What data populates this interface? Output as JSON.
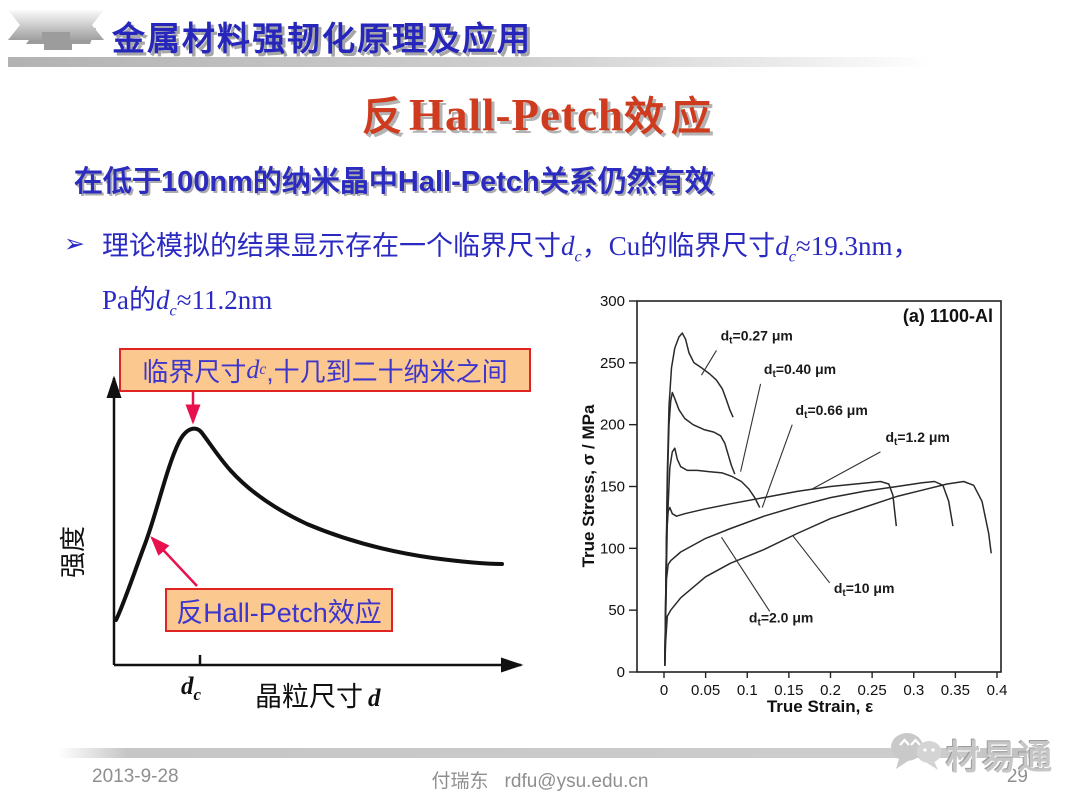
{
  "header": {
    "title": "金属材料强韧化原理及应用"
  },
  "title": {
    "cn_prefix": "反",
    "latin": "Hall-Petch",
    "cn_suffix": "效应"
  },
  "subtitle": "在低于100nm的纳米晶中Hall-Petch关系仍然有效",
  "bullet": {
    "marker": "➢",
    "line1": [
      "理论模拟的结果显示存在一个临界尺寸",
      "d",
      "c",
      "，",
      "Cu",
      "的临界尺寸",
      "d",
      "c",
      "≈19.3nm",
      "，"
    ],
    "line2": [
      "Pa",
      "的",
      "d",
      "c",
      "≈11.2nm"
    ]
  },
  "schematic": {
    "ylabel": "强度",
    "xlabel": [
      "晶粒尺寸",
      "d"
    ],
    "xtick": [
      "d",
      "c"
    ],
    "box1": [
      "临界尺寸",
      "d",
      "c",
      ",十几到二十纳米之间"
    ],
    "box2": "反Hall-Petch效应",
    "colors": {
      "box_bg": "#fbc98f",
      "box_border": "#e02323",
      "arrow": "#e8114d",
      "text": "#3d35cc"
    }
  },
  "chart_data": {
    "type": "line",
    "title": "(a) 1100-Al",
    "title_pos": [
      0.287,
      283
    ],
    "xlabel": "True Strain, ε",
    "ylabel": "True Stress, σ / MPa",
    "xlim": [
      0,
      0.4
    ],
    "ylim": [
      0,
      300
    ],
    "xticks": [
      0,
      0.05,
      0.1,
      0.15,
      0.2,
      0.25,
      0.3,
      0.35,
      0.4
    ],
    "yticks": [
      0,
      50,
      100,
      150,
      200,
      250,
      300
    ],
    "grid": false,
    "series": [
      {
        "name": "dt=0.27um",
        "points": [
          [
            0.001,
            5
          ],
          [
            0.002,
            60
          ],
          [
            0.004,
            160
          ],
          [
            0.006,
            215
          ],
          [
            0.009,
            246
          ],
          [
            0.013,
            262
          ],
          [
            0.018,
            271
          ],
          [
            0.022,
            274
          ],
          [
            0.026,
            269
          ],
          [
            0.03,
            258
          ],
          [
            0.036,
            250
          ],
          [
            0.045,
            246
          ],
          [
            0.055,
            241
          ],
          [
            0.063,
            236
          ],
          [
            0.07,
            229
          ],
          [
            0.075,
            220
          ],
          [
            0.079,
            212
          ],
          [
            0.083,
            206
          ]
        ]
      },
      {
        "name": "dt=0.40um",
        "points": [
          [
            0.001,
            5
          ],
          [
            0.002,
            60
          ],
          [
            0.004,
            150
          ],
          [
            0.006,
            200
          ],
          [
            0.008,
            219
          ],
          [
            0.01,
            226
          ],
          [
            0.013,
            221
          ],
          [
            0.018,
            212
          ],
          [
            0.025,
            205
          ],
          [
            0.035,
            200
          ],
          [
            0.048,
            196
          ],
          [
            0.06,
            194
          ],
          [
            0.068,
            191
          ],
          [
            0.073,
            185
          ],
          [
            0.077,
            176
          ],
          [
            0.081,
            167
          ],
          [
            0.085,
            160
          ]
        ]
      },
      {
        "name": "dt=0.66um",
        "points": [
          [
            0.001,
            5
          ],
          [
            0.002,
            50
          ],
          [
            0.004,
            120
          ],
          [
            0.007,
            165
          ],
          [
            0.01,
            178
          ],
          [
            0.013,
            181
          ],
          [
            0.016,
            172
          ],
          [
            0.02,
            166
          ],
          [
            0.028,
            163
          ],
          [
            0.04,
            163
          ],
          [
            0.055,
            162
          ],
          [
            0.07,
            161
          ],
          [
            0.082,
            158
          ],
          [
            0.093,
            154
          ],
          [
            0.102,
            148
          ],
          [
            0.109,
            141
          ],
          [
            0.115,
            133
          ]
        ]
      },
      {
        "name": "dt=1.2um",
        "points": [
          [
            0.001,
            5
          ],
          [
            0.002,
            60
          ],
          [
            0.003,
            110
          ],
          [
            0.005,
            130
          ],
          [
            0.007,
            133
          ],
          [
            0.01,
            128
          ],
          [
            0.015,
            126
          ],
          [
            0.025,
            128
          ],
          [
            0.05,
            132
          ],
          [
            0.08,
            136
          ],
          [
            0.12,
            141
          ],
          [
            0.16,
            146
          ],
          [
            0.2,
            150
          ],
          [
            0.23,
            152
          ],
          [
            0.26,
            154
          ],
          [
            0.27,
            152
          ],
          [
            0.275,
            143
          ],
          [
            0.279,
            118
          ]
        ]
      },
      {
        "name": "dt=2.0um",
        "points": [
          [
            0.001,
            5
          ],
          [
            0.002,
            45
          ],
          [
            0.003,
            75
          ],
          [
            0.005,
            87
          ],
          [
            0.008,
            90
          ],
          [
            0.02,
            97
          ],
          [
            0.05,
            108
          ],
          [
            0.08,
            116
          ],
          [
            0.12,
            126
          ],
          [
            0.16,
            134
          ],
          [
            0.2,
            141
          ],
          [
            0.24,
            146
          ],
          [
            0.28,
            150
          ],
          [
            0.31,
            153
          ],
          [
            0.325,
            154
          ],
          [
            0.335,
            151
          ],
          [
            0.342,
            138
          ],
          [
            0.347,
            118
          ]
        ]
      },
      {
        "name": "dt=10um",
        "points": [
          [
            0.001,
            5
          ],
          [
            0.002,
            25
          ],
          [
            0.004,
            45
          ],
          [
            0.008,
            50
          ],
          [
            0.02,
            60
          ],
          [
            0.05,
            77
          ],
          [
            0.08,
            88
          ],
          [
            0.12,
            99
          ],
          [
            0.16,
            112
          ],
          [
            0.2,
            124
          ],
          [
            0.24,
            133
          ],
          [
            0.28,
            142
          ],
          [
            0.31,
            147
          ],
          [
            0.34,
            152
          ],
          [
            0.36,
            154
          ],
          [
            0.372,
            151
          ],
          [
            0.382,
            138
          ],
          [
            0.39,
            112
          ],
          [
            0.393,
            96
          ]
        ]
      }
    ],
    "labels": [
      {
        "pre": "d",
        "sub": "t",
        "rest": "=0.27 μm",
        "x": 0.068,
        "y": 268,
        "leader": [
          [
            0.063,
            260
          ],
          [
            0.045,
            240
          ]
        ]
      },
      {
        "pre": "d",
        "sub": "t",
        "rest": "=0.40 μm",
        "x": 0.12,
        "y": 241,
        "leader": [
          [
            0.116,
            233
          ],
          [
            0.092,
            162
          ]
        ]
      },
      {
        "pre": "d",
        "sub": "t",
        "rest": "=0.66 μm",
        "x": 0.158,
        "y": 208,
        "leader": [
          [
            0.154,
            200
          ],
          [
            0.118,
            133
          ]
        ]
      },
      {
        "pre": "d",
        "sub": "t",
        "rest": "=1.2 μm",
        "x": 0.266,
        "y": 186,
        "leader": [
          [
            0.26,
            178
          ],
          [
            0.178,
            148
          ]
        ]
      },
      {
        "pre": "d",
        "sub": "t",
        "rest": "=10 μm",
        "x": 0.204,
        "y": 64,
        "leader": [
          [
            0.199,
            72
          ],
          [
            0.155,
            110
          ]
        ]
      },
      {
        "pre": "d",
        "sub": "t",
        "rest": "=2.0 μm",
        "x": 0.102,
        "y": 40,
        "leader": [
          [
            0.127,
            49
          ],
          [
            0.069,
            109
          ]
        ]
      }
    ]
  },
  "footer": {
    "date": "2013-9-28",
    "author": "付瑞东",
    "email": "rdfu@ysu.edu.cn",
    "page": "29",
    "watermark": "材易通"
  }
}
